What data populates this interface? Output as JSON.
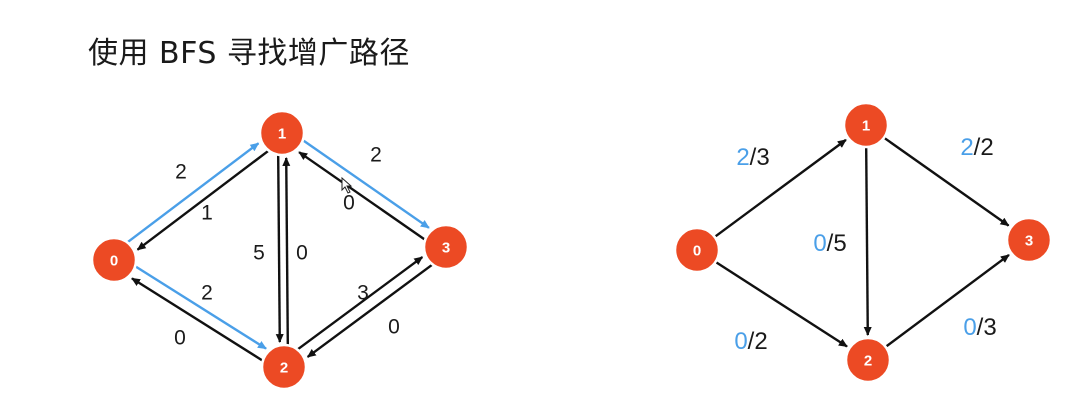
{
  "title": "使用 BFS 寻找增广路径",
  "colors": {
    "node": "#ec4a24",
    "edge": "#111111",
    "path": "#4a9fe8",
    "flow_text": "#4a9fe8",
    "text": "#1a1a1a"
  },
  "residual_graph": {
    "nodes": [
      {
        "id": "0",
        "label": "0"
      },
      {
        "id": "1",
        "label": "1"
      },
      {
        "id": "2",
        "label": "2"
      },
      {
        "id": "3",
        "label": "3"
      }
    ],
    "edges": [
      {
        "from": "1",
        "to": "0",
        "label": "2",
        "highlight": false
      },
      {
        "from": "0",
        "to": "1",
        "label": "1",
        "highlight": true
      },
      {
        "from": "2",
        "to": "0",
        "label": "0",
        "highlight": false
      },
      {
        "from": "0",
        "to": "2",
        "label": "2",
        "highlight": true
      },
      {
        "from": "1",
        "to": "2",
        "label": "5",
        "highlight": false
      },
      {
        "from": "2",
        "to": "1",
        "label": "0",
        "highlight": false
      },
      {
        "from": "3",
        "to": "1",
        "label": "2",
        "highlight": false
      },
      {
        "from": "1",
        "to": "3",
        "label": "0",
        "highlight": true
      },
      {
        "from": "2",
        "to": "3",
        "label": "3",
        "highlight": false
      },
      {
        "from": "3",
        "to": "2",
        "label": "0",
        "highlight": false
      }
    ]
  },
  "flow_graph": {
    "nodes": [
      {
        "id": "0",
        "label": "0"
      },
      {
        "id": "1",
        "label": "1"
      },
      {
        "id": "2",
        "label": "2"
      },
      {
        "id": "3",
        "label": "3"
      }
    ],
    "edges": [
      {
        "from": "0",
        "to": "1",
        "flow": "2",
        "capacity": "3"
      },
      {
        "from": "0",
        "to": "2",
        "flow": "0",
        "capacity": "2"
      },
      {
        "from": "1",
        "to": "2",
        "flow": "0",
        "capacity": "5"
      },
      {
        "from": "1",
        "to": "3",
        "flow": "2",
        "capacity": "2"
      },
      {
        "from": "2",
        "to": "3",
        "flow": "0",
        "capacity": "3"
      }
    ]
  }
}
